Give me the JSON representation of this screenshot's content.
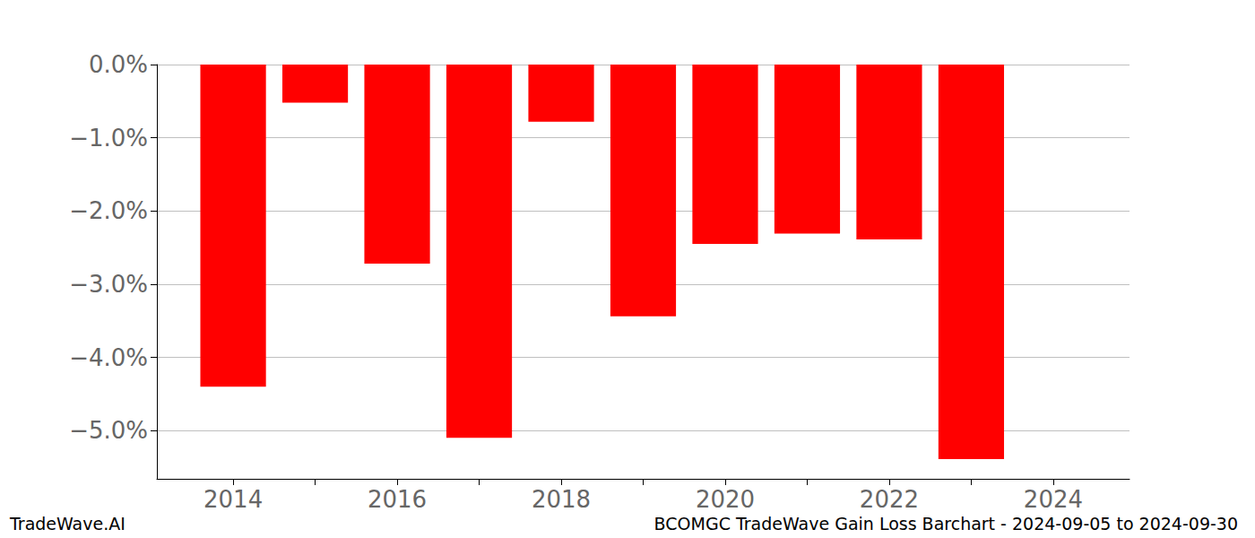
{
  "chart_data": {
    "type": "bar",
    "title": "BCOMGC TradeWave Gain Loss Barchart - 2024-09-05 to 2024-09-30",
    "subtitle": "TradeWave.AI",
    "x": [
      2014,
      2015,
      2016,
      2017,
      2018,
      2019,
      2020,
      2021,
      2022,
      2023
    ],
    "values": [
      -4.4,
      -0.52,
      -2.72,
      -5.1,
      -0.78,
      -3.44,
      -2.45,
      -2.31,
      -2.39,
      -5.39
    ],
    "color": "#ff0000",
    "xlim": [
      2013.07,
      2024.93
    ],
    "xticks": [
      2014,
      2016,
      2018,
      2020,
      2022,
      2024
    ],
    "ylim": [
      -5.66,
      0
    ],
    "yticks": [
      {
        "value": 0,
        "label": "0.0%"
      },
      {
        "value": -1,
        "label": "−1.0%"
      },
      {
        "value": -2,
        "label": "−2.0%"
      },
      {
        "value": -3,
        "label": "−3.0%"
      },
      {
        "value": -4,
        "label": "−4.0%"
      },
      {
        "value": -5,
        "label": "−5.0%"
      }
    ],
    "grid": true
  }
}
